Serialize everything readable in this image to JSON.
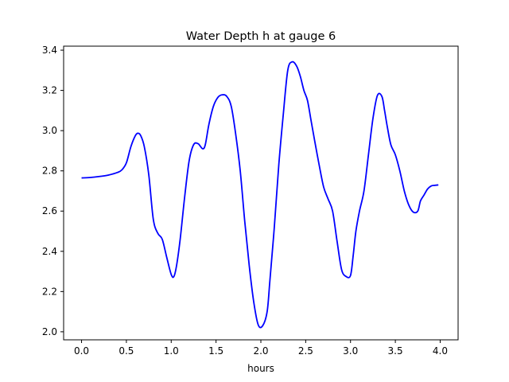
{
  "chart_data": {
    "type": "line",
    "title": "Water Depth h at gauge 6",
    "xlabel": "hours",
    "ylabel": "",
    "xlim": [
      -0.2,
      4.2
    ],
    "ylim": [
      1.96,
      3.42
    ],
    "xticks": [
      0.0,
      0.5,
      1.0,
      1.5,
      2.0,
      2.5,
      3.0,
      3.5,
      4.0
    ],
    "xtick_labels": [
      "0.0",
      "0.5",
      "1.0",
      "1.5",
      "2.0",
      "2.5",
      "3.0",
      "3.5",
      "4.0"
    ],
    "yticks": [
      2.0,
      2.2,
      2.4,
      2.6,
      2.8,
      3.0,
      3.2,
      3.4
    ],
    "ytick_labels": [
      "2.0",
      "2.2",
      "2.4",
      "2.6",
      "2.8",
      "3.0",
      "3.2",
      "3.4"
    ],
    "grid": false,
    "legend": "none",
    "series": [
      {
        "color": "#0000ff",
        "x": [
          0.0,
          0.1,
          0.2,
          0.3,
          0.4,
          0.45,
          0.5,
          0.55,
          0.6,
          0.63,
          0.66,
          0.7,
          0.75,
          0.8,
          0.85,
          0.9,
          0.95,
          1.0,
          1.03,
          1.06,
          1.1,
          1.15,
          1.2,
          1.25,
          1.3,
          1.35,
          1.38,
          1.42,
          1.47,
          1.52,
          1.57,
          1.62,
          1.67,
          1.72,
          1.77,
          1.82,
          1.87,
          1.92,
          1.97,
          2.02,
          2.07,
          2.1,
          2.15,
          2.2,
          2.25,
          2.3,
          2.35,
          2.4,
          2.44,
          2.48,
          2.52,
          2.56,
          2.6,
          2.65,
          2.7,
          2.75,
          2.8,
          2.85,
          2.9,
          2.95,
          3.0,
          3.03,
          3.06,
          3.1,
          3.15,
          3.2,
          3.25,
          3.3,
          3.35,
          3.38,
          3.41,
          3.45,
          3.5,
          3.55,
          3.6,
          3.65,
          3.7,
          3.75,
          3.78,
          3.82,
          3.86,
          3.9,
          3.94,
          3.98
        ],
        "y": [
          2.765,
          2.767,
          2.772,
          2.779,
          2.792,
          2.805,
          2.84,
          2.92,
          2.975,
          2.987,
          2.975,
          2.92,
          2.78,
          2.56,
          2.49,
          2.46,
          2.37,
          2.285,
          2.275,
          2.33,
          2.46,
          2.67,
          2.85,
          2.93,
          2.935,
          2.91,
          2.93,
          3.03,
          3.12,
          3.165,
          3.178,
          3.17,
          3.12,
          2.98,
          2.8,
          2.55,
          2.33,
          2.15,
          2.035,
          2.03,
          2.1,
          2.25,
          2.52,
          2.83,
          3.08,
          3.3,
          3.342,
          3.32,
          3.27,
          3.2,
          3.15,
          3.05,
          2.95,
          2.83,
          2.72,
          2.66,
          2.6,
          2.45,
          2.31,
          2.275,
          2.28,
          2.38,
          2.5,
          2.6,
          2.7,
          2.88,
          3.06,
          3.175,
          3.17,
          3.1,
          3.02,
          2.93,
          2.88,
          2.8,
          2.7,
          2.63,
          2.595,
          2.6,
          2.65,
          2.68,
          2.71,
          2.725,
          2.728,
          2.73
        ]
      }
    ]
  }
}
